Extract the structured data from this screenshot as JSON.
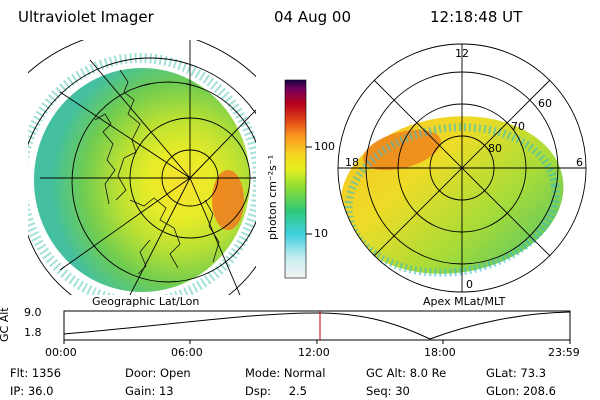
{
  "header": {
    "instrument": "Ultraviolet Imager",
    "date": "04 Aug 00",
    "time": "12:18:48 UT"
  },
  "colorbar": {
    "unit_label": "photon cm⁻²s⁻¹",
    "ticks": [
      "100",
      "10"
    ]
  },
  "left_panel": {
    "caption": "Geographic Lat/Lon"
  },
  "right_panel": {
    "caption": "Apex MLat/MLT",
    "mlt_labels": [
      "12",
      "18",
      "6",
      "0"
    ],
    "mlat_labels": [
      "60",
      "70",
      "80"
    ]
  },
  "altitude_plot": {
    "ylabel": "GC Alt",
    "yticks": [
      "9.0",
      "1.8"
    ],
    "xticks": [
      "00:00",
      "06:00",
      "12:00",
      "18:00",
      "23:59"
    ]
  },
  "status": {
    "flt_label": "Flt:",
    "flt_value": "1356",
    "ip_label": "IP:",
    "ip_value": "36.0",
    "door_label": "Door:",
    "door_value": "Open",
    "gain_label": "Gain:",
    "gain_value": "13",
    "mode_label": "Mode:",
    "mode_value": "Normal",
    "dsp_label": "Dsp:",
    "dsp_value": "2.5",
    "gcalt_label": "GC Alt:",
    "gcalt_value": "8.0 Re",
    "seq_label": "Seq:",
    "seq_value": "30",
    "glat_label": "GLat:",
    "glat_value": "73.3",
    "glon_label": "GLon:",
    "glon_value": "208.6"
  },
  "colors": {
    "marker": "#cc0000",
    "gradient": [
      "#f4f4f4",
      "#c8ecf0",
      "#40d0e0",
      "#30c878",
      "#88dc38",
      "#e6f020",
      "#f7d222",
      "#f89420",
      "#e04218",
      "#b8001c",
      "#780058",
      "#1a0046"
    ]
  }
}
